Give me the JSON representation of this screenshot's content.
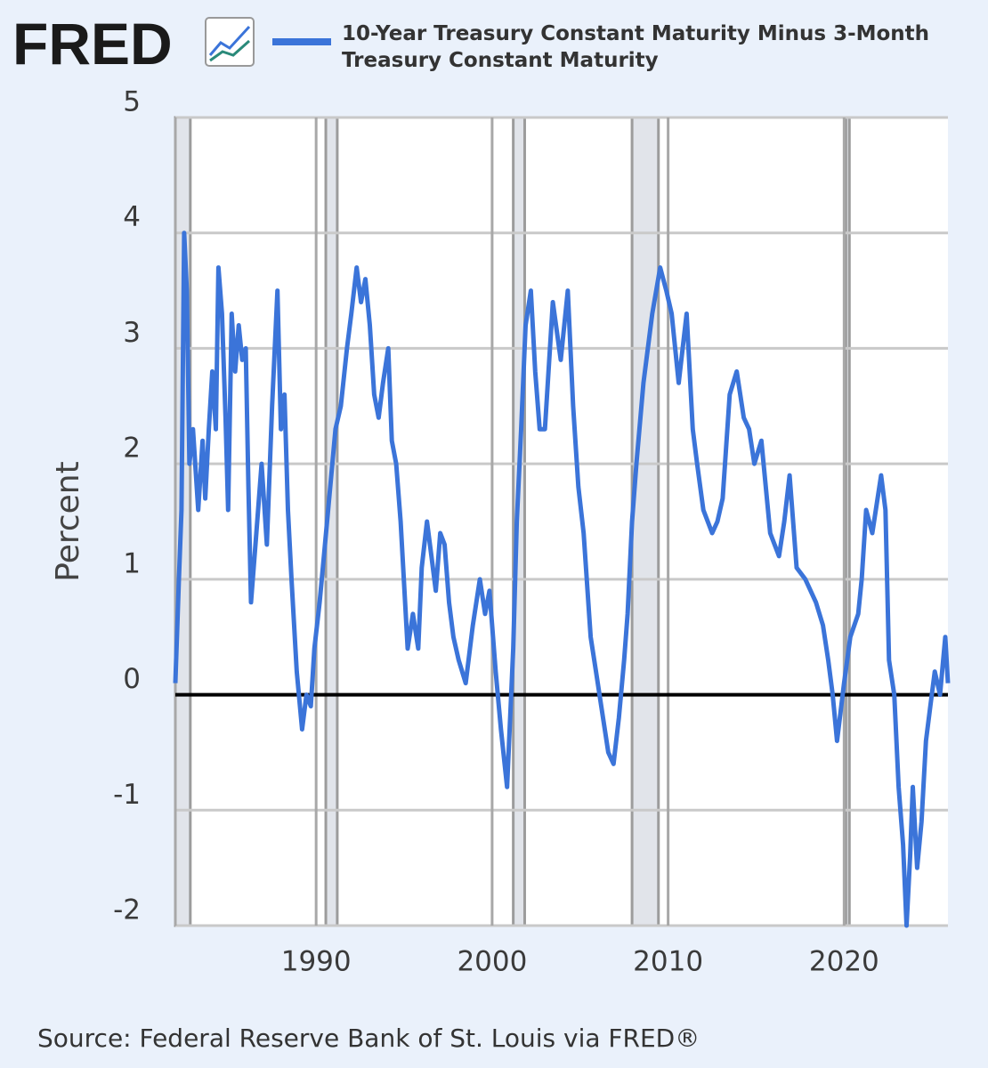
{
  "logo": "FRED",
  "chart_data": {
    "type": "line",
    "series": [
      {
        "name": "10-Year Treasury Constant Maturity Minus 3-Month Treasury Constant Maturity",
        "color": "#3b74d9",
        "values": [
          0.1,
          1.0,
          1.6,
          4.0,
          3.5,
          2.0,
          2.3,
          1.6,
          2.2,
          1.7,
          2.3,
          2.8,
          2.3,
          3.7,
          3.3,
          2.4,
          1.6,
          3.3,
          2.8,
          3.2,
          2.9,
          3.0,
          1.8,
          0.8,
          1.4,
          2.0,
          1.3,
          2.5,
          3.5,
          2.3,
          2.6,
          1.6,
          1.0,
          0.2,
          -0.3,
          0.0,
          -0.1,
          0.4,
          0.8,
          1.3,
          1.8,
          2.3,
          2.5,
          3.0,
          3.3,
          3.7,
          3.4,
          3.6,
          3.2,
          2.6,
          2.4,
          2.7,
          3.0,
          2.2,
          2.0,
          1.5,
          0.4,
          0.7,
          0.4,
          1.1,
          1.5,
          1.2,
          0.9,
          1.4,
          1.3,
          0.8,
          0.5,
          0.3,
          0.1,
          0.6,
          1.0,
          0.7,
          0.9,
          0.2,
          -0.3,
          -0.8,
          0.4,
          1.5,
          2.3,
          3.2,
          3.5,
          2.8,
          2.3,
          2.3,
          3.4,
          2.9,
          3.5,
          2.5,
          1.8,
          1.4,
          0.5,
          0.2,
          -0.1,
          -0.5,
          -0.6,
          -0.2,
          0.3,
          0.7,
          1.5,
          2.0,
          2.7,
          3.3,
          3.7,
          3.5,
          3.3,
          2.7,
          3.3,
          2.3,
          2.0,
          1.6,
          1.4,
          1.5,
          1.7,
          2.6,
          2.8,
          2.4,
          2.3,
          2.0,
          2.2,
          1.4,
          1.2,
          1.5,
          1.9,
          1.1,
          1.0,
          0.8,
          0.6,
          0.3,
          0.0,
          -0.4,
          0.1,
          0.5,
          0.7,
          1.0,
          1.6,
          1.4,
          1.9,
          1.6,
          0.3,
          0.0,
          -0.8,
          -1.3,
          -2.0,
          -1.4,
          -0.8,
          -1.5,
          -1.1,
          -0.4,
          -0.1,
          0.2,
          0.0,
          0.5,
          0.1
        ]
      }
    ],
    "x": [
      1982.0,
      1982.2,
      1982.35,
      1982.5,
      1982.65,
      1982.8,
      1983.0,
      1983.3,
      1983.55,
      1983.7,
      1983.9,
      1984.1,
      1984.3,
      1984.45,
      1984.65,
      1984.85,
      1985.0,
      1985.2,
      1985.4,
      1985.6,
      1985.8,
      1986.0,
      1986.15,
      1986.3,
      1986.6,
      1986.9,
      1987.2,
      1987.5,
      1987.8,
      1988.0,
      1988.2,
      1988.4,
      1988.6,
      1988.9,
      1989.2,
      1989.45,
      1989.7,
      1989.9,
      1990.2,
      1990.5,
      1990.8,
      1991.1,
      1991.4,
      1991.75,
      1992.0,
      1992.3,
      1992.55,
      1992.8,
      1993.05,
      1993.3,
      1993.55,
      1993.8,
      1994.1,
      1994.3,
      1994.55,
      1994.8,
      1995.2,
      1995.5,
      1995.8,
      1996.0,
      1996.3,
      1996.55,
      1996.8,
      1997.05,
      1997.3,
      1997.55,
      1997.8,
      1998.1,
      1998.5,
      1998.9,
      1999.3,
      1999.6,
      1999.85,
      2000.2,
      2000.5,
      2000.85,
      2001.2,
      2001.4,
      2001.65,
      2001.9,
      2002.2,
      2002.45,
      2002.7,
      2003.0,
      2003.45,
      2003.9,
      2004.3,
      2004.6,
      2004.9,
      2005.2,
      2005.6,
      2005.9,
      2006.2,
      2006.6,
      2006.9,
      2007.2,
      2007.5,
      2007.7,
      2007.95,
      2008.2,
      2008.6,
      2009.1,
      2009.55,
      2009.9,
      2010.2,
      2010.6,
      2011.05,
      2011.4,
      2011.65,
      2012.0,
      2012.5,
      2012.8,
      2013.1,
      2013.5,
      2013.9,
      2014.3,
      2014.6,
      2014.9,
      2015.3,
      2015.8,
      2016.3,
      2016.6,
      2016.9,
      2017.3,
      2017.8,
      2018.4,
      2018.8,
      2019.1,
      2019.35,
      2019.6,
      2020.0,
      2020.35,
      2020.8,
      2021.0,
      2021.25,
      2021.6,
      2022.1,
      2022.35,
      2022.55,
      2022.85,
      2023.1,
      2023.35,
      2023.55,
      2023.75,
      2023.9,
      2024.15,
      2024.4,
      2024.65,
      2024.9,
      2025.15,
      2025.45,
      2025.75,
      2025.9
    ],
    "xlim": [
      1982.0,
      2025.9
    ],
    "xticks": [
      1990,
      2000,
      2010,
      2020
    ],
    "ylim": [
      -2,
      5
    ],
    "yticks": [
      -2,
      -1,
      0,
      1,
      2,
      3,
      4,
      5
    ],
    "ylabel": "Percent",
    "grid": true,
    "recessions": [
      [
        1981.5,
        1982.85
      ],
      [
        1990.55,
        1991.2
      ],
      [
        2001.2,
        2001.85
      ],
      [
        2007.95,
        2009.45
      ],
      [
        2020.1,
        2020.3
      ]
    ],
    "source": "Source: Federal Reserve Bank of St. Louis via FRED®"
  }
}
